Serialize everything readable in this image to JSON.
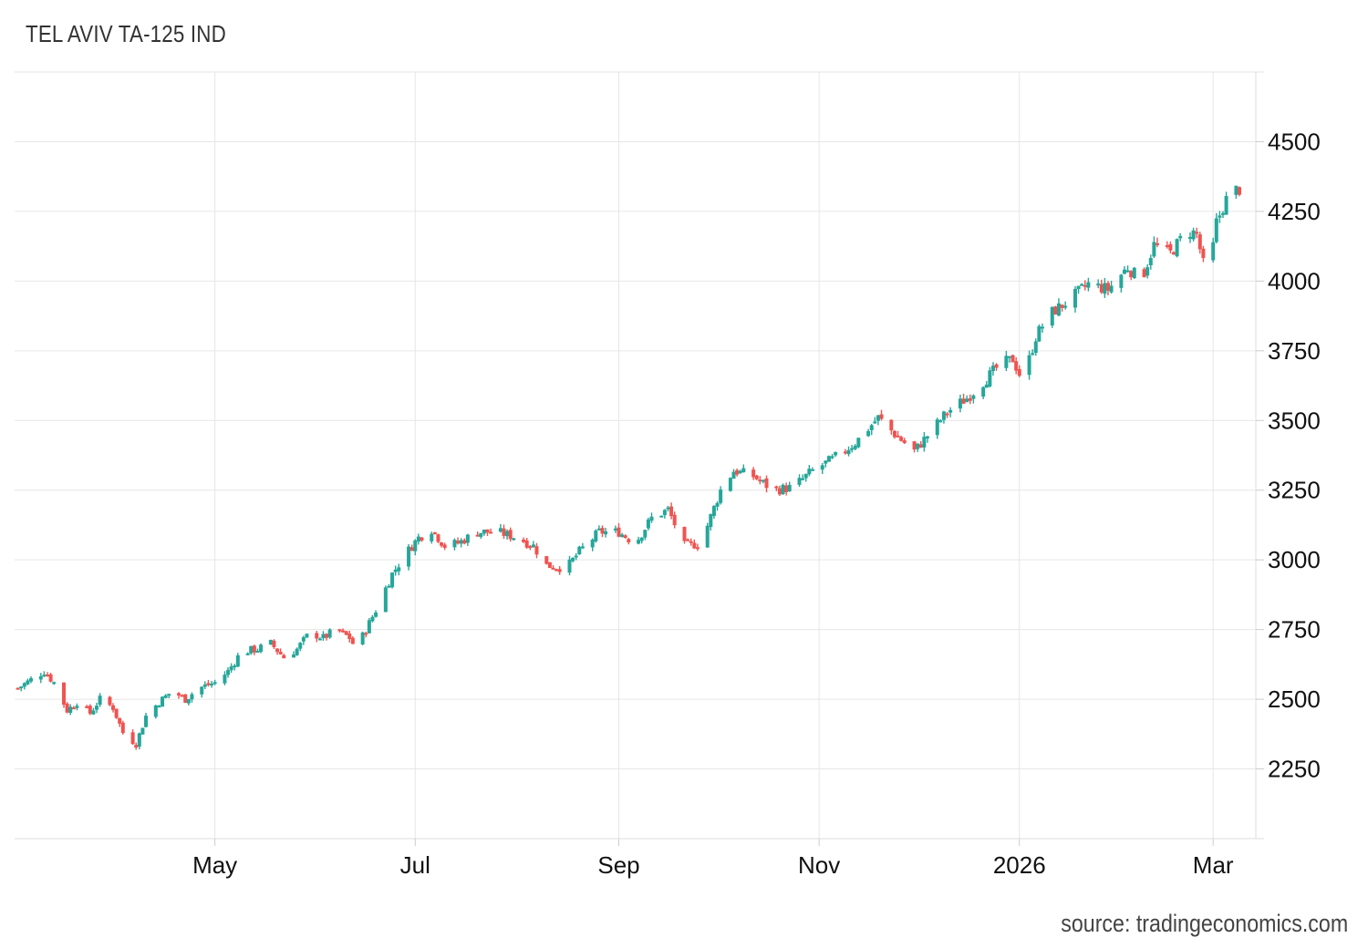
{
  "chart_data": {
    "type": "candlestick",
    "title": "TEL AVIV TA-125 IND",
    "source": "source: tradingeconomics.com",
    "up_color": "#26a69a",
    "down_color": "#ef5350",
    "grid": true,
    "x_ticks": [
      {
        "label": "May",
        "date": "2025-05-01"
      },
      {
        "label": "Jul",
        "date": "2025-07-01"
      },
      {
        "label": "Sep",
        "date": "2025-09-01"
      },
      {
        "label": "Nov",
        "date": "2025-11-01"
      },
      {
        "label": "2026",
        "date": "2026-01-01"
      },
      {
        "label": "Mar",
        "date": "2026-03-01"
      }
    ],
    "y_ticks": [
      2250,
      2500,
      2750,
      3000,
      3250,
      3500,
      3750,
      4000,
      4250,
      4500
    ],
    "ylim": [
      2000,
      4750
    ],
    "xlim": [
      "2025-03-01",
      "2026-03-14"
    ],
    "close_path": [
      [
        "2025-03-02",
        2540
      ],
      [
        "2025-03-06",
        2570
      ],
      [
        "2025-03-10",
        2600
      ],
      [
        "2025-03-13",
        2560
      ],
      [
        "2025-03-17",
        2460
      ],
      [
        "2025-03-20",
        2490
      ],
      [
        "2025-03-24",
        2450
      ],
      [
        "2025-03-27",
        2500
      ],
      [
        "2025-03-31",
        2470
      ],
      [
        "2025-04-03",
        2380
      ],
      [
        "2025-04-07",
        2340
      ],
      [
        "2025-04-10",
        2440
      ],
      [
        "2025-04-14",
        2490
      ],
      [
        "2025-04-18",
        2530
      ],
      [
        "2025-04-22",
        2500
      ],
      [
        "2025-04-26",
        2540
      ],
      [
        "2025-05-01",
        2560
      ],
      [
        "2025-05-05",
        2600
      ],
      [
        "2025-05-09",
        2670
      ],
      [
        "2025-05-14",
        2680
      ],
      [
        "2025-05-18",
        2700
      ],
      [
        "2025-05-22",
        2650
      ],
      [
        "2025-05-26",
        2680
      ],
      [
        "2025-05-30",
        2740
      ],
      [
        "2025-06-03",
        2720
      ],
      [
        "2025-06-07",
        2750
      ],
      [
        "2025-06-11",
        2720
      ],
      [
        "2025-06-13",
        2680
      ],
      [
        "2025-06-16",
        2750
      ],
      [
        "2025-06-19",
        2820
      ],
      [
        "2025-06-24",
        2950
      ],
      [
        "2025-06-28",
        3020
      ],
      [
        "2025-07-02",
        3080
      ],
      [
        "2025-07-06",
        3110
      ],
      [
        "2025-07-10",
        3050
      ],
      [
        "2025-07-14",
        3060
      ],
      [
        "2025-07-20",
        3100
      ],
      [
        "2025-07-26",
        3100
      ],
      [
        "2025-08-01",
        3080
      ],
      [
        "2025-08-06",
        3050
      ],
      [
        "2025-08-10",
        2980
      ],
      [
        "2025-08-16",
        2970
      ],
      [
        "2025-08-20",
        3030
      ],
      [
        "2025-08-26",
        3100
      ],
      [
        "2025-09-01",
        3100
      ],
      [
        "2025-09-06",
        3060
      ],
      [
        "2025-09-11",
        3150
      ],
      [
        "2025-09-16",
        3180
      ],
      [
        "2025-09-21",
        3050
      ],
      [
        "2025-09-26",
        3060
      ],
      [
        "2025-10-02",
        3250
      ],
      [
        "2025-10-06",
        3320
      ],
      [
        "2025-10-12",
        3300
      ],
      [
        "2025-10-18",
        3250
      ],
      [
        "2025-10-24",
        3260
      ],
      [
        "2025-10-30",
        3320
      ],
      [
        "2025-11-05",
        3360
      ],
      [
        "2025-11-12",
        3420
      ],
      [
        "2025-11-19",
        3510
      ],
      [
        "2025-11-25",
        3440
      ],
      [
        "2025-11-30",
        3390
      ],
      [
        "2025-12-05",
        3460
      ],
      [
        "2025-12-10",
        3530
      ],
      [
        "2025-12-16",
        3580
      ],
      [
        "2025-12-22",
        3650
      ],
      [
        "2025-12-26",
        3700
      ],
      [
        "2025-12-30",
        3720
      ],
      [
        "2026-01-02",
        3640
      ],
      [
        "2026-01-06",
        3800
      ],
      [
        "2026-01-10",
        3880
      ],
      [
        "2026-01-16",
        3930
      ],
      [
        "2026-01-22",
        3990
      ],
      [
        "2026-01-28",
        3970
      ],
      [
        "2026-02-03",
        4050
      ],
      [
        "2026-02-07",
        4000
      ],
      [
        "2026-02-11",
        4130
      ],
      [
        "2026-02-16",
        4100
      ],
      [
        "2026-02-21",
        4180
      ],
      [
        "2026-02-24",
        4170
      ],
      [
        "2026-02-26",
        4060
      ],
      [
        "2026-02-28",
        4040
      ],
      [
        "2026-03-02",
        4210
      ],
      [
        "2026-03-06",
        4320
      ],
      [
        "2026-03-09",
        4330
      ]
    ]
  }
}
